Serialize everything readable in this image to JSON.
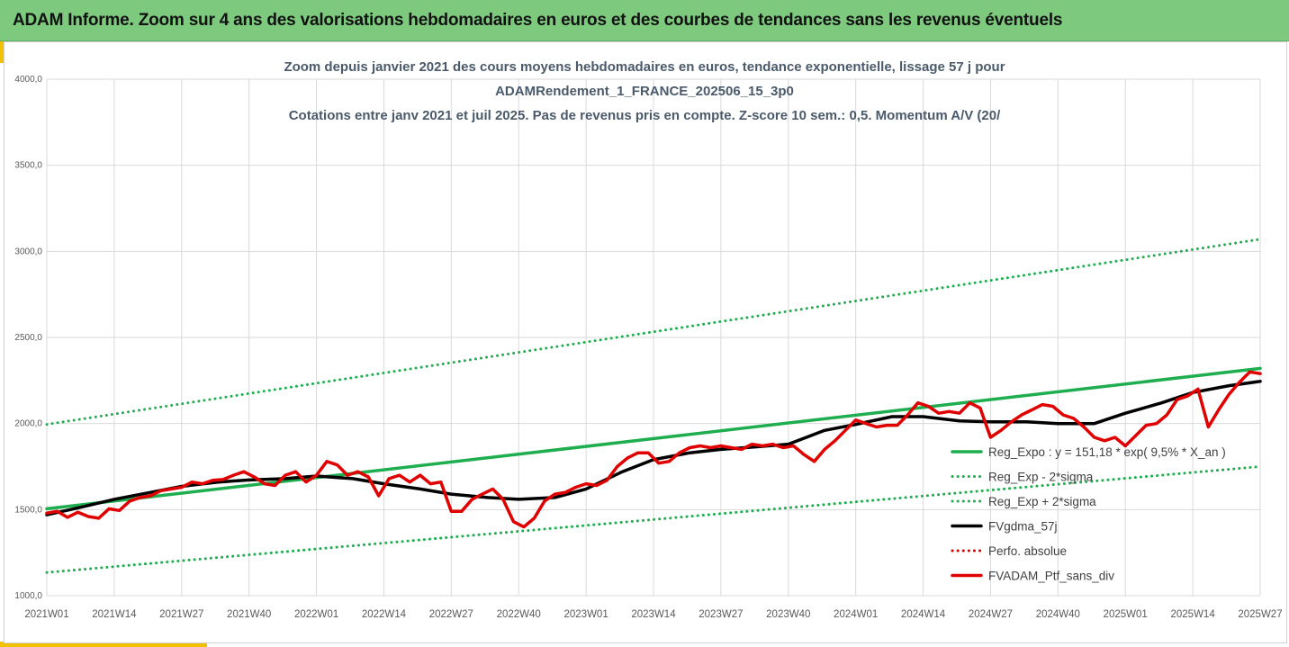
{
  "banner": {
    "title": "ADAM Informe. Zoom sur 4 ans des valorisations hebdomadaires en euros et des courbes de tendances sans les revenus éventuels"
  },
  "colors": {
    "banner_bg": "#7dc97d",
    "accent": "#f2c200",
    "trend": "#1fae4f",
    "smooth": "#000000",
    "perf": "#e00000",
    "grid": "#d9d9d9"
  },
  "chart_data": {
    "type": "line",
    "title_lines": [
      "Zoom depuis janvier 2021 des cours moyens hebdomadaires  en euros, tendance exponentielle, lissage 57 j pour",
      "ADAMRendement_1_FRANCE_202506_15_3p0",
      "Cotations entre janv 2021 et juil 2025. Pas de revenus pris en compte. Z-score 10 sem.: 0,5. Momentum A/V (20/"
    ],
    "ylim": [
      1000,
      4000
    ],
    "y_ticks": [
      "1000,0",
      "1500,0",
      "2000,0",
      "2500,0",
      "3000,0",
      "3500,0",
      "4000,0"
    ],
    "x_ticks": [
      "2021W01",
      "2021W14",
      "2021W27",
      "2021W40",
      "2022W01",
      "2022W14",
      "2022W27",
      "2022W40",
      "2023W01",
      "2023W14",
      "2023W27",
      "2023W40",
      "2024W01",
      "2024W14",
      "2024W27",
      "2024W40",
      "2025W01",
      "2025W14",
      "2025W27"
    ],
    "grid": true,
    "legend_position": "right",
    "series": [
      {
        "name": "Reg_Expo : y = 151,18 * exp( 9,5% *  X_an )",
        "style": "solid",
        "color": "#1fae4f",
        "x": [
          0,
          234
        ],
        "y": [
          1505,
          2320
        ]
      },
      {
        "name": "Reg_Exp - 2*sigma",
        "style": "dotted",
        "color": "#1fae4f",
        "x": [
          0,
          234
        ],
        "y": [
          1135,
          1750
        ]
      },
      {
        "name": "Reg_Exp + 2*sigma",
        "style": "dotted",
        "color": "#1fae4f",
        "x": [
          0,
          234
        ],
        "y": [
          1995,
          3070
        ]
      },
      {
        "name": "FVgdma_57j",
        "style": "solid",
        "color": "#000000",
        "x": [
          0,
          6,
          13,
          20,
          26,
          33,
          39,
          46,
          52,
          59,
          65,
          72,
          78,
          85,
          91,
          98,
          104,
          111,
          117,
          124,
          130,
          137,
          143,
          150,
          156,
          163,
          169,
          176,
          182,
          189,
          195,
          202,
          208,
          215,
          221,
          228,
          234
        ],
        "y": [
          1470,
          1510,
          1560,
          1600,
          1635,
          1660,
          1672,
          1680,
          1695,
          1680,
          1650,
          1620,
          1590,
          1570,
          1560,
          1570,
          1620,
          1720,
          1790,
          1830,
          1850,
          1865,
          1880,
          1960,
          1995,
          2040,
          2040,
          2015,
          2010,
          2010,
          2000,
          2000,
          2060,
          2120,
          2180,
          2220,
          2245
        ]
      },
      {
        "name": "Perfo. absolue",
        "style": "dotted",
        "color": "#e00000",
        "x": [],
        "y": []
      },
      {
        "name": "FVADAM_Ptf_sans_div",
        "style": "solid",
        "color": "#e00000",
        "x": [
          0,
          2,
          4,
          6,
          8,
          10,
          12,
          14,
          16,
          18,
          20,
          22,
          24,
          26,
          28,
          30,
          32,
          34,
          36,
          38,
          40,
          42,
          44,
          46,
          48,
          50,
          52,
          54,
          56,
          58,
          60,
          62,
          64,
          66,
          68,
          70,
          72,
          74,
          76,
          78,
          80,
          82,
          84,
          86,
          88,
          90,
          92,
          94,
          96,
          98,
          100,
          102,
          104,
          106,
          108,
          110,
          112,
          114,
          116,
          118,
          120,
          122,
          124,
          126,
          128,
          130,
          132,
          134,
          136,
          138,
          140,
          142,
          144,
          146,
          148,
          150,
          152,
          154,
          156,
          158,
          160,
          162,
          164,
          166,
          168,
          170,
          172,
          174,
          176,
          178,
          180,
          182,
          184,
          186,
          188,
          190,
          192,
          194,
          196,
          198,
          200,
          202,
          204,
          206,
          208,
          210,
          212,
          214,
          216,
          218,
          220,
          222,
          224,
          226,
          228,
          230,
          232,
          234
        ],
        "y": [
          1480,
          1490,
          1455,
          1485,
          1460,
          1450,
          1505,
          1495,
          1550,
          1570,
          1580,
          1610,
          1620,
          1630,
          1660,
          1650,
          1670,
          1675,
          1700,
          1720,
          1690,
          1650,
          1640,
          1700,
          1720,
          1660,
          1700,
          1780,
          1760,
          1700,
          1720,
          1690,
          1580,
          1680,
          1700,
          1660,
          1700,
          1650,
          1660,
          1490,
          1490,
          1560,
          1590,
          1620,
          1560,
          1430,
          1400,
          1450,
          1550,
          1590,
          1600,
          1630,
          1650,
          1640,
          1670,
          1750,
          1800,
          1830,
          1830,
          1770,
          1780,
          1830,
          1860,
          1870,
          1860,
          1870,
          1860,
          1850,
          1880,
          1870,
          1880,
          1860,
          1870,
          1820,
          1780,
          1850,
          1900,
          1960,
          2020,
          2000,
          1980,
          1990,
          1990,
          2050,
          2120,
          2100,
          2060,
          2070,
          2060,
          2120,
          2090,
          1920,
          1960,
          2010,
          2050,
          2080,
          2110,
          2100,
          2050,
          2030,
          1980,
          1920,
          1900,
          1920,
          1870,
          1930,
          1990,
          2000,
          2050,
          2140,
          2160,
          2200,
          1980,
          2080,
          2170,
          2240,
          2300,
          2290
        ]
      }
    ]
  }
}
